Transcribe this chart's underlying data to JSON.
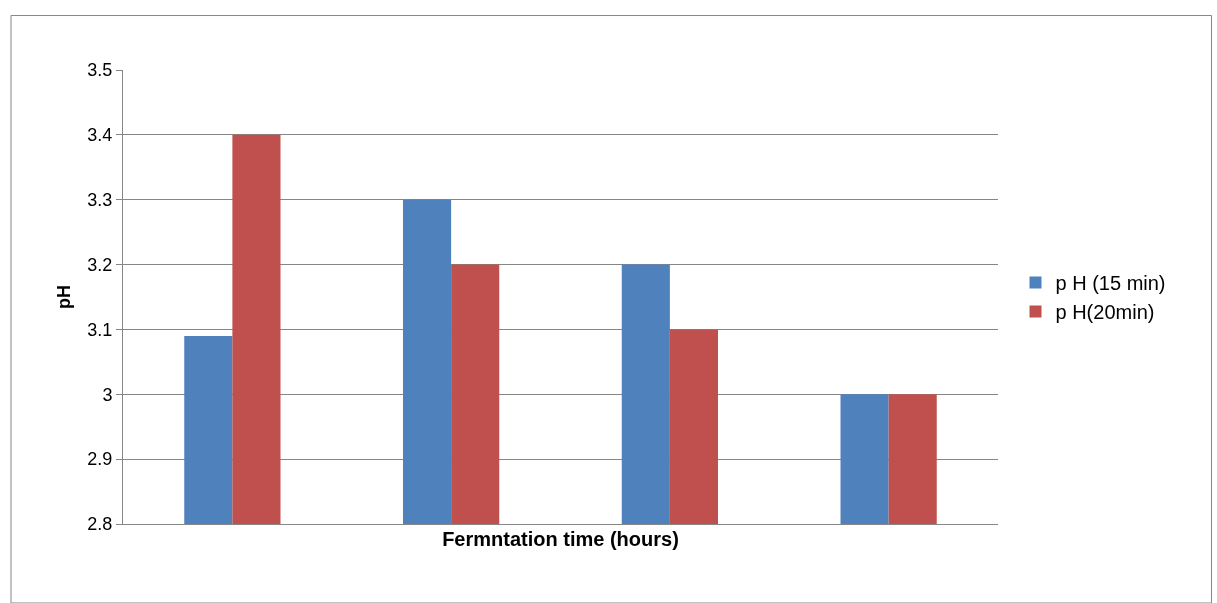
{
  "chart_data": {
    "type": "bar",
    "xlabel": "Fermntation time (hours)",
    "ylabel": "pH",
    "categories": [
      null,
      null,
      null,
      null
    ],
    "series": [
      {
        "name": "p H (15 min)",
        "color": "#4f81bd",
        "values": [
          3.09,
          3.3,
          3.2,
          3.0
        ]
      },
      {
        "name": "p H(20min)",
        "color": "#c0504d",
        "values": [
          3.4,
          3.2,
          3.1,
          3.0
        ]
      }
    ],
    "ylim": [
      2.8,
      3.5
    ],
    "yticks": [
      2.8,
      2.9,
      3,
      3.1,
      3.2,
      3.3,
      3.4,
      3.5
    ],
    "grid": "y",
    "legend": "right"
  }
}
